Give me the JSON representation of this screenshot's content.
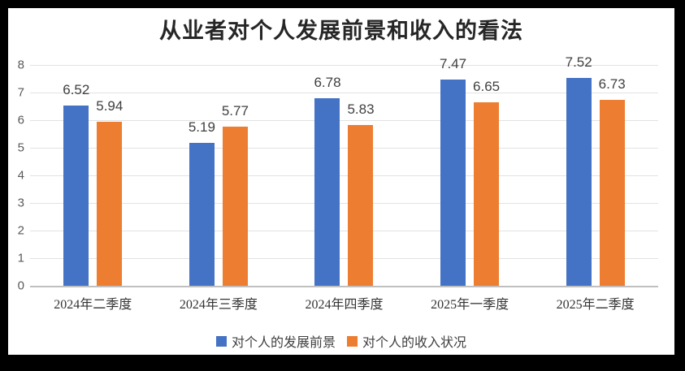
{
  "chart_data": {
    "type": "bar",
    "title": "从业者对个人发展前景和收入的看法",
    "categories": [
      "2024年二季度",
      "2024年三季度",
      "2024年四季度",
      "2025年一季度",
      "2025年二季度"
    ],
    "series": [
      {
        "name": "对个人的发展前景",
        "color": "#4472C4",
        "values": [
          6.52,
          5.19,
          6.78,
          7.47,
          7.52
        ]
      },
      {
        "name": "对个人的收入状况",
        "color": "#ED7D31",
        "values": [
          5.94,
          5.77,
          5.83,
          6.65,
          6.73
        ]
      }
    ],
    "xlabel": "",
    "ylabel": "",
    "ylim": [
      0,
      8
    ],
    "yticks": [
      0,
      1,
      2,
      3,
      4,
      5,
      6,
      7,
      8
    ],
    "value_label_decimals": 2,
    "grid": true,
    "legend_position": "bottom"
  },
  "colors": {
    "frame_background": "#000000",
    "chart_background": "#ffffff",
    "gridline": "#e2e2e2",
    "axis_line": "#bfbfbf",
    "tick_text": "#595959",
    "value_label_text": "#404040",
    "title_text": "#262626"
  }
}
